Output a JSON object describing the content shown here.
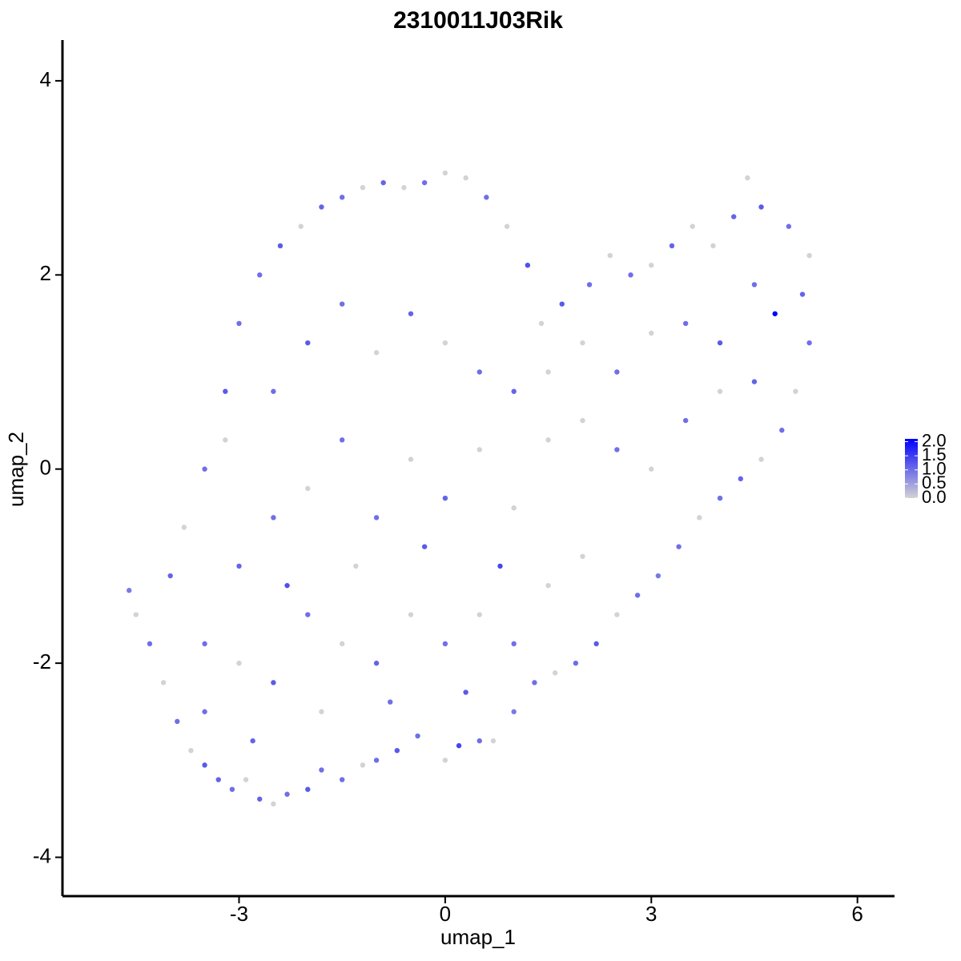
{
  "chart_data": {
    "type": "scatter",
    "title": "2310011J03Rik",
    "x_label": "umap_1",
    "y_label": "umap_2",
    "xlim": [
      -5.57,
      6.54
    ],
    "ylim": [
      -4.4,
      4.42
    ],
    "xticks": [
      -3,
      0,
      3,
      6
    ],
    "yticks": [
      -4,
      -2,
      0,
      2,
      4
    ],
    "color_scale": {
      "low": "#d3d3d3",
      "high": "#0000ff",
      "lim": [
        0,
        2.1
      ],
      "ticks": [
        {
          "value": 0,
          "label": "0.0"
        },
        {
          "value": 0.5,
          "label": "0.5"
        },
        {
          "value": 1,
          "label": "1.0"
        },
        {
          "value": 1.5,
          "label": "1.5"
        },
        {
          "value": 2,
          "label": "2.0"
        }
      ]
    },
    "x": [
      -4.6,
      -4.5,
      -4.3,
      -4.1,
      -3.9,
      -3.7,
      -3.5,
      -3.3,
      -3.1,
      -2.9,
      -2.7,
      -2.5,
      -2.3,
      -2.0,
      -1.8,
      -1.5,
      -1.2,
      -1.0,
      -0.7,
      -0.4,
      0.0,
      0.2,
      0.5,
      0.7,
      1.0,
      1.3,
      1.6,
      1.9,
      2.2,
      2.5,
      2.8,
      3.1,
      3.4,
      3.7,
      4.0,
      4.3,
      4.6,
      4.9,
      5.1,
      5.3,
      5.2,
      5.3,
      5.0,
      4.8,
      4.6,
      4.4,
      4.2,
      3.9,
      3.6,
      3.3,
      3.0,
      2.7,
      2.4,
      2.1,
      1.7,
      1.4,
      1.2,
      0.9,
      0.6,
      0.3,
      0.0,
      -0.3,
      -0.6,
      -0.9,
      -1.2,
      -1.5,
      -1.8,
      -2.1,
      -2.4,
      -2.7,
      -3.0,
      -3.2,
      -3.5,
      -3.8,
      -4.0,
      -3.5,
      -3.0,
      -2.5,
      -2.0,
      -1.5,
      -1.0,
      -0.5,
      0.0,
      0.5,
      1.0,
      1.5,
      -3.0,
      -2.5,
      -2.0,
      -1.5,
      -1.0,
      -0.5,
      0.0,
      0.5,
      1.0,
      1.5,
      2.0,
      2.5,
      3.0,
      3.5,
      4.0,
      4.5,
      -2.5,
      -2.0,
      -1.5,
      -1.0,
      -0.5,
      0.0,
      0.5,
      1.0,
      1.5,
      2.0,
      2.5,
      3.0,
      3.5,
      4.0,
      4.5,
      -2.3,
      -1.3,
      -0.3,
      0.8,
      2.0,
      -3.5,
      -2.8,
      -1.8,
      -0.8,
      0.3,
      -3.2
    ],
    "y": [
      -1.25,
      -1.5,
      -1.8,
      -2.2,
      -2.6,
      -2.9,
      -3.05,
      -3.2,
      -3.3,
      -3.2,
      -3.4,
      -3.45,
      -3.35,
      -3.3,
      -3.1,
      -3.2,
      -3.05,
      -3.0,
      -2.9,
      -2.75,
      -3.0,
      -2.85,
      -2.8,
      -2.8,
      -2.5,
      -2.2,
      -2.1,
      -2.0,
      -1.8,
      -1.5,
      -1.3,
      -1.1,
      -0.8,
      -0.5,
      -0.3,
      -0.1,
      0.1,
      0.4,
      0.8,
      1.3,
      1.8,
      2.2,
      2.5,
      1.6,
      2.7,
      3.0,
      2.6,
      2.3,
      2.5,
      2.3,
      2.1,
      2.0,
      2.2,
      1.9,
      1.7,
      1.5,
      2.1,
      2.5,
      2.8,
      3.0,
      3.05,
      2.95,
      2.9,
      2.95,
      2.9,
      2.8,
      2.7,
      2.5,
      2.3,
      2.0,
      1.5,
      0.8,
      0.0,
      -0.6,
      -1.1,
      -1.8,
      -2.0,
      -2.2,
      -1.5,
      -1.8,
      -2.0,
      -1.5,
      -1.8,
      -1.5,
      -1.8,
      -1.2,
      -1.0,
      -0.5,
      -0.2,
      0.3,
      -0.5,
      0.1,
      -0.3,
      0.2,
      -0.4,
      0.3,
      0.5,
      0.2,
      0.0,
      0.5,
      0.8,
      0.9,
      0.8,
      1.3,
      1.7,
      1.2,
      1.6,
      1.3,
      1.0,
      0.8,
      1.0,
      1.3,
      1.0,
      1.4,
      1.5,
      1.3,
      1.9,
      -1.2,
      -1.0,
      -0.8,
      -1.0,
      -0.9,
      -2.5,
      -2.8,
      -2.5,
      -2.4,
      -2.3,
      0.3
    ],
    "expression": [
      0.9,
      0,
      1.0,
      0,
      1.0,
      0,
      1.2,
      1.1,
      1.0,
      0,
      1.1,
      0,
      1.0,
      1.2,
      1.0,
      1.0,
      0,
      1.0,
      1.2,
      1.0,
      0,
      1.4,
      1.0,
      0,
      0.9,
      1.0,
      0,
      1.0,
      1.2,
      0,
      1.0,
      0.9,
      1.0,
      0,
      1.0,
      1.1,
      0,
      1.0,
      0,
      1.0,
      1.1,
      0,
      1.0,
      2.1,
      1.2,
      0,
      1.1,
      0,
      0,
      1.1,
      0,
      1.0,
      0,
      1.0,
      1.2,
      0,
      1.3,
      0,
      1.0,
      0,
      0,
      1.0,
      0,
      1.1,
      0,
      1.0,
      1.1,
      0,
      1.2,
      1.0,
      1.0,
      1.2,
      1.0,
      0,
      1.1,
      1.0,
      0,
      1.2,
      1.0,
      0,
      1.1,
      0,
      1.0,
      0,
      1.0,
      0,
      1.1,
      1.0,
      0,
      1.0,
      1.0,
      0,
      1.1,
      0,
      0,
      0,
      0,
      1.0,
      0,
      1.0,
      0,
      1.1,
      1.0,
      1.2,
      1.0,
      0,
      1.1,
      0,
      1.0,
      1.1,
      0,
      0,
      1.0,
      0,
      1.0,
      1.2,
      1.0,
      1.3,
      0,
      1.2,
      1.4,
      0,
      1.0,
      1.1,
      0,
      1.0,
      1.2,
      0
    ]
  }
}
